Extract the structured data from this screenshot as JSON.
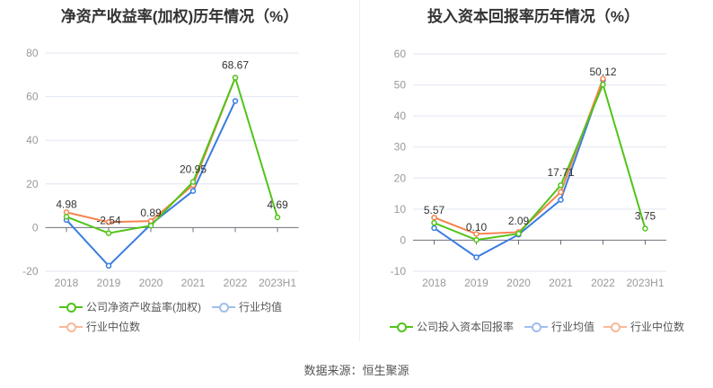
{
  "footer": "数据来源：恒生聚源",
  "chart_data": [
    {
      "type": "line",
      "title": "净资产收益率(加权)历年情况（%）",
      "categories": [
        "2018",
        "2019",
        "2020",
        "2021",
        "2022",
        "2023H1"
      ],
      "ylim": [
        -20,
        80
      ],
      "yticks": [
        -20,
        0,
        20,
        40,
        60,
        80
      ],
      "grid": true,
      "legend_position": "bottom-left",
      "series": [
        {
          "name": "公司净资产收益率(加权)",
          "color": "#52c41a",
          "values": [
            4.98,
            -2.54,
            0.89,
            20.95,
            68.67,
            4.69
          ],
          "labels": [
            "4.98",
            "-2.54",
            "0.89",
            "20.95",
            "68.67",
            "4.69"
          ]
        },
        {
          "name": "行业均值",
          "color": "#3a7de0",
          "values": [
            3.5,
            -17.5,
            1.5,
            16.8,
            58.0,
            null
          ]
        },
        {
          "name": "行业中位数",
          "color": "#f5834f",
          "values": [
            7.0,
            2.5,
            3.0,
            19.5,
            68.7,
            null
          ]
        }
      ]
    },
    {
      "type": "line",
      "title": "投入资本回报率历年情况（%）",
      "categories": [
        "2018",
        "2019",
        "2020",
        "2021",
        "2022",
        "2023H1"
      ],
      "ylim": [
        -10,
        60
      ],
      "yticks": [
        -10,
        0,
        10,
        20,
        30,
        40,
        50,
        60
      ],
      "grid": true,
      "legend_position": "bottom",
      "series": [
        {
          "name": "公司投入资本回报率",
          "color": "#52c41a",
          "values": [
            5.57,
            0.1,
            2.09,
            17.71,
            50.12,
            3.75
          ],
          "labels": [
            "5.57",
            "0.10",
            "2.09",
            "17.71",
            "50.12",
            "3.75"
          ]
        },
        {
          "name": "行业均值",
          "color": "#3a7de0",
          "values": [
            3.9,
            -5.5,
            1.8,
            13.0,
            51.5,
            null
          ]
        },
        {
          "name": "行业中位数",
          "color": "#f5834f",
          "values": [
            7.3,
            2.0,
            2.6,
            15.5,
            52.0,
            null
          ]
        }
      ]
    }
  ]
}
